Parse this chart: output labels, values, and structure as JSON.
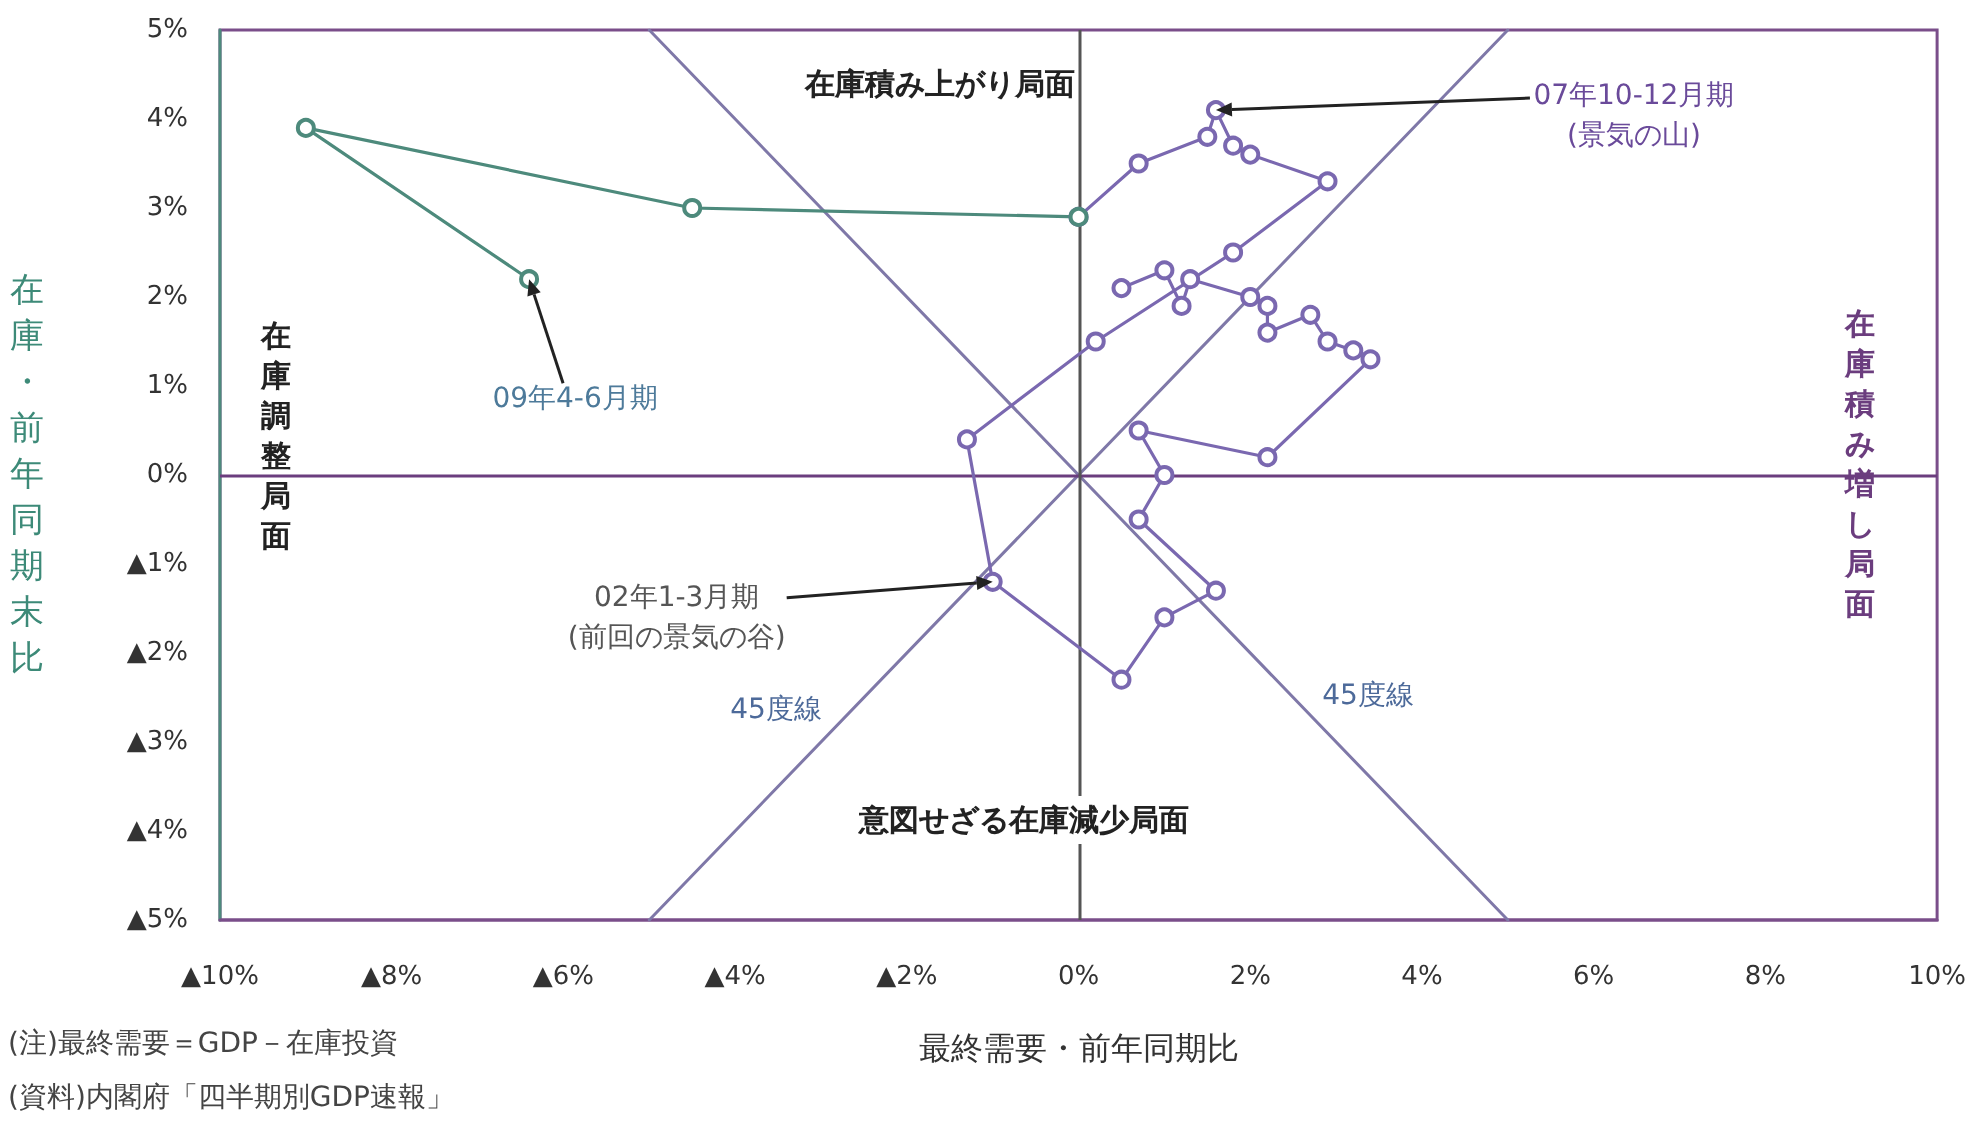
{
  "chart_data": {
    "type": "line",
    "xlabel": "最終需要・前年同期比",
    "ylabel": "在庫・前年同期末比",
    "xlim": [
      -10,
      10
    ],
    "ylim": [
      -5,
      5
    ],
    "xticks": [
      {
        "value": -10,
        "label": "▲10%"
      },
      {
        "value": -8,
        "label": "▲8%"
      },
      {
        "value": -6,
        "label": "▲6%"
      },
      {
        "value": -4,
        "label": "▲4%"
      },
      {
        "value": -2,
        "label": "▲2%"
      },
      {
        "value": 0,
        "label": "0%"
      },
      {
        "value": 2,
        "label": "2%"
      },
      {
        "value": 4,
        "label": "4%"
      },
      {
        "value": 6,
        "label": "6%"
      },
      {
        "value": 8,
        "label": "8%"
      },
      {
        "value": 10,
        "label": "10%"
      }
    ],
    "yticks": [
      {
        "value": -5,
        "label": "▲5%"
      },
      {
        "value": -4,
        "label": "▲4%"
      },
      {
        "value": -3,
        "label": "▲3%"
      },
      {
        "value": -2,
        "label": "▲2%"
      },
      {
        "value": -1,
        "label": "▲1%"
      },
      {
        "value": 0,
        "label": "0%"
      },
      {
        "value": 1,
        "label": "1%"
      },
      {
        "value": 2,
        "label": "2%"
      },
      {
        "value": 3,
        "label": "3%"
      },
      {
        "value": 4,
        "label": "4%"
      },
      {
        "value": 5,
        "label": "5%"
      }
    ],
    "series": [
      {
        "color": "#7a68b0",
        "marker": "circle",
        "x": [
          0.5,
          1.0,
          1.2,
          1.3,
          2.0,
          2.2,
          2.2,
          2.7,
          2.9,
          3.2,
          3.4,
          2.2,
          0.7,
          1.0,
          0.7,
          1.6,
          1.0,
          0.5,
          -1.0,
          -1.3,
          0.2,
          1.8,
          2.9,
          2.0,
          1.8,
          1.6,
          1.5,
          0.7,
          0.0
        ],
        "values": [
          2.1,
          2.3,
          1.9,
          2.2,
          2.0,
          1.9,
          1.6,
          1.8,
          1.5,
          1.4,
          1.3,
          0.2,
          0.5,
          0.0,
          -0.5,
          -1.3,
          -1.6,
          -2.3,
          -1.2,
          0.4,
          1.5,
          2.5,
          3.3,
          3.6,
          3.7,
          4.1,
          3.8,
          3.5,
          2.9
        ]
      },
      {
        "color": "#4d8a7c",
        "marker": "circle",
        "x": [
          0.0,
          -4.5,
          -9.0,
          -6.4
        ],
        "values": [
          2.9,
          3.0,
          3.9,
          2.2
        ]
      },
      {
        "color": "#7f78a8",
        "marker": "none",
        "x": [
          -5,
          5
        ],
        "values": [
          -5,
          5
        ]
      },
      {
        "color": "#7f78a8",
        "marker": "none",
        "x": [
          -5,
          5
        ],
        "values": [
          5,
          -5
        ]
      }
    ],
    "ref_lines": [
      {
        "axis": "y",
        "value": 0,
        "color": "#6b3d7e"
      },
      {
        "axis": "x",
        "value": 0,
        "color": "#555555"
      }
    ],
    "annotations": [
      "在庫積み上がり局面",
      "在庫調整局面",
      "在庫積み増し局面",
      "意図せざる在庫減少局面",
      "(注)最終需要＝GDP－在庫投資",
      "(資料)内閣府「四半期別GDP速報」",
      "45度線",
      "45度線",
      {
        "text": "07年10-12月期\n(景気の山)",
        "x": 1.6,
        "y": 4.1
      },
      {
        "text": "09年4-6月期",
        "x": -6.4,
        "y": 2.2
      },
      {
        "text": "02年1-3月期\n(前回の景気の谷)",
        "x": -1.0,
        "y": -1.2
      }
    ],
    "grid": false,
    "line_style": "solid"
  }
}
